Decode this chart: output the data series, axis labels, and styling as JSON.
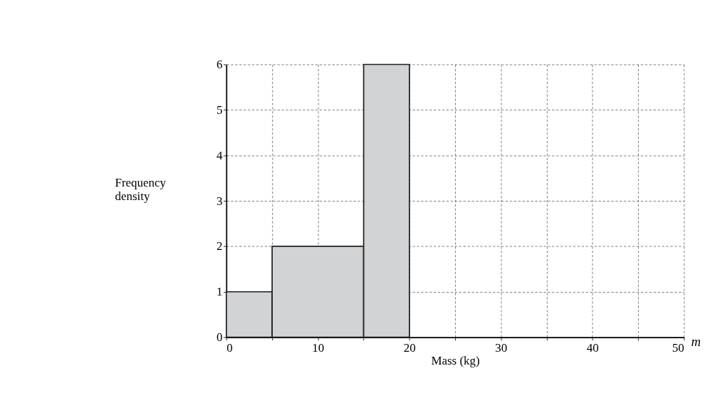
{
  "chart_data": {
    "type": "histogram",
    "xlabel": "Mass (kg)",
    "ylabel": "Frequency density",
    "bins": [
      0,
      5,
      15,
      20
    ],
    "values": [
      1,
      2,
      6
    ],
    "color": "#d1d3d4",
    "xlim": [
      0,
      50
    ],
    "ylim": [
      0,
      6
    ],
    "xticks": [
      0,
      {
        "value": 5,
        "label": null
      },
      10,
      {
        "value": 15,
        "label": null
      },
      20,
      {
        "value": 25,
        "label": null
      },
      30,
      {
        "value": 35,
        "label": null
      },
      40,
      {
        "value": 45,
        "label": null
      },
      50
    ],
    "yticks": [
      0,
      1,
      2,
      3,
      4,
      5,
      6
    ],
    "grid": true,
    "line_style": "dashed",
    "annotations": [
      "m"
    ]
  }
}
